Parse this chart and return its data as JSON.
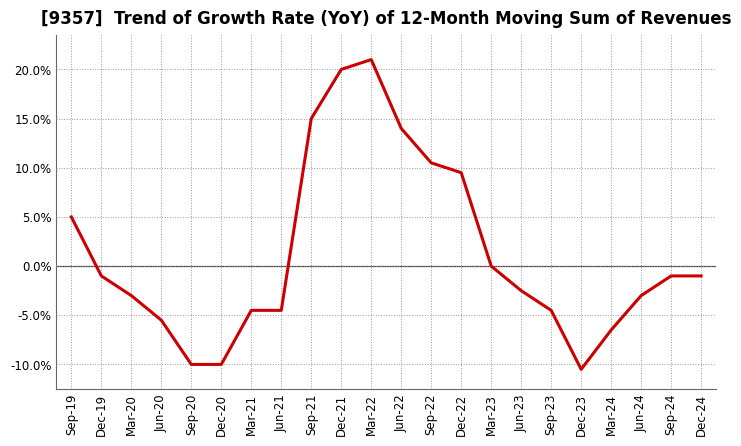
{
  "title": "[9357]  Trend of Growth Rate (YoY) of 12-Month Moving Sum of Revenues",
  "line_color": "#cc0000",
  "background_color": "#ffffff",
  "grid_color": "#999999",
  "xlabels": [
    "Sep-19",
    "Dec-19",
    "Mar-20",
    "Jun-20",
    "Sep-20",
    "Dec-20",
    "Mar-21",
    "Jun-21",
    "Sep-21",
    "Dec-21",
    "Mar-22",
    "Jun-22",
    "Sep-22",
    "Dec-22",
    "Mar-23",
    "Jun-23",
    "Sep-23",
    "Dec-23",
    "Mar-24",
    "Jun-24",
    "Sep-24",
    "Dec-24"
  ],
  "values": [
    0.05,
    -0.01,
    -0.03,
    -0.055,
    -0.1,
    -0.1,
    -0.045,
    -0.045,
    0.15,
    0.2,
    0.21,
    0.14,
    0.105,
    0.095,
    0.0,
    -0.025,
    -0.045,
    -0.105,
    -0.065,
    -0.03,
    -0.01,
    -0.01
  ],
  "ylim": [
    -0.125,
    0.235
  ],
  "yticks": [
    -0.1,
    -0.05,
    0.0,
    0.05,
    0.1,
    0.15,
    0.2
  ],
  "title_fontsize": 12,
  "tick_fontsize": 8.5,
  "line_width": 2.2
}
